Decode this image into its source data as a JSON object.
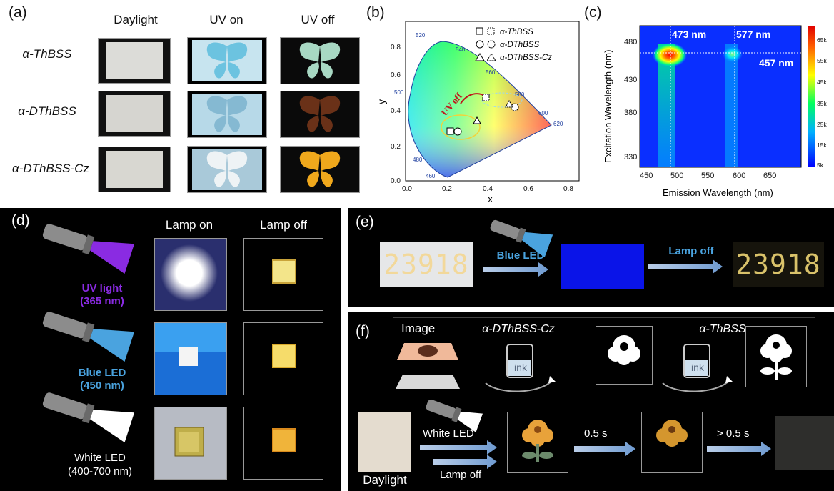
{
  "panel_a": {
    "label": "(a)",
    "columns": [
      "Daylight",
      "UV on",
      "UV off"
    ],
    "rows": [
      "α-ThBSS",
      "α-DThBSS",
      "α-DThBSS-Cz"
    ]
  },
  "panel_b": {
    "label": "(b)",
    "xlabel": "x",
    "ylabel": "y",
    "x_ticks": [
      "0.0",
      "0.2",
      "0.4",
      "0.6",
      "0.8"
    ],
    "y_ticks": [
      "0.0",
      "0.2",
      "0.4",
      "0.6",
      "0.8"
    ],
    "wavelength_labels": [
      "460",
      "480",
      "500",
      "520",
      "540",
      "560",
      "580",
      "600",
      "620"
    ],
    "legend": [
      "α-ThBSS",
      "α-DThBSS",
      "α-DThBSS-Cz"
    ],
    "annotation": "UV off",
    "colors": {
      "spectral_locus": "#1f3f9f",
      "annotation": "#c0171c",
      "ellipse": "#f2d23a"
    }
  },
  "chart_data": {
    "type": "heatmap",
    "title": "",
    "xlabel": "Emission Wavelength (nm)",
    "ylabel": "Excitation Wavelength (nm)",
    "x_ticks": [
      "450",
      "500",
      "550",
      "600",
      "650"
    ],
    "y_ticks": [
      "330",
      "380",
      "430",
      "480"
    ],
    "xlim": [
      430,
      690
    ],
    "ylim": [
      305,
      500
    ],
    "colorbar_ticks": [
      "5k",
      "15k",
      "25k",
      "35k",
      "45k",
      "55k",
      "65k"
    ],
    "annotations": [
      "473 nm",
      "577 nm",
      "457 nm"
    ],
    "peaks": [
      {
        "emission": 473,
        "excitation": 457,
        "intensity": 65000
      },
      {
        "emission": 577,
        "excitation": 457,
        "intensity": 25000
      }
    ]
  },
  "panel_c": {
    "label": "(c)"
  },
  "panel_d": {
    "label": "(d)",
    "columns": [
      "Lamp on",
      "Lamp off"
    ],
    "lamps": [
      {
        "name": "UV light",
        "range": "(365 nm)",
        "color": "#8a2be2"
      },
      {
        "name": "Blue LED",
        "range": "(450 nm)",
        "color": "#4aa3df"
      },
      {
        "name": "White LED",
        "range": "(400-700 nm)",
        "color": "#ffffff"
      }
    ]
  },
  "panel_e": {
    "label": "(e)",
    "digits": "23918",
    "step1": "Blue LED",
    "step2": "Lamp off"
  },
  "panel_f": {
    "label": "(f)",
    "image_label": "Image",
    "ink1": "α-DThBSS-Cz",
    "ink2": "α-ThBSS",
    "ink_text": "ink",
    "daylight": "Daylight",
    "white_led": "White LED",
    "lamp_off": "Lamp off",
    "t1": "0.5 s",
    "t2": "> 0.5 s"
  }
}
